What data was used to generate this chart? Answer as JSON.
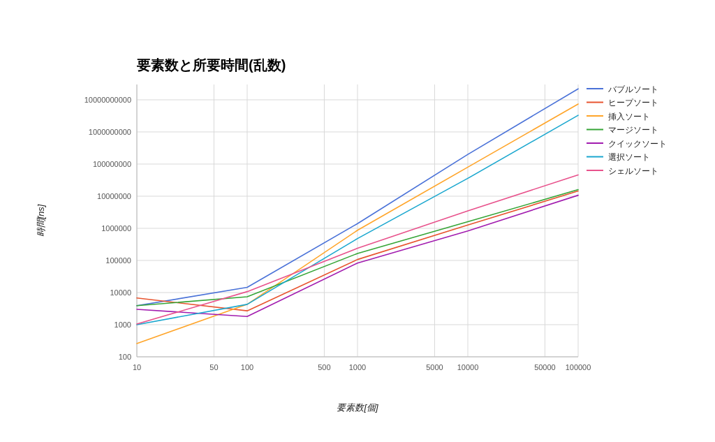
{
  "chart_data": {
    "type": "line",
    "title": "要素数と所要時間(乱数)",
    "xlabel": "要素数[個]",
    "ylabel": "時間[ns]",
    "log": "xy",
    "grid": true,
    "legend": "right",
    "x": [
      10,
      100,
      1000,
      10000,
      100000
    ],
    "xlim": [
      10,
      100000
    ],
    "xticks": [
      10,
      50,
      100,
      500,
      1000,
      5000,
      10000,
      50000,
      100000
    ],
    "ylim": [
      100,
      30000000000
    ],
    "yticks": [
      100,
      1000,
      10000,
      100000,
      1000000,
      10000000,
      100000000,
      1000000000,
      10000000000
    ],
    "series": [
      {
        "name": "バブルソート",
        "color": "#4a72d8",
        "values": [
          3900,
          14500,
          1400000,
          200000000,
          22000000000
        ]
      },
      {
        "name": "ヒープソート",
        "color": "#e8542f",
        "values": [
          6800,
          2700,
          107000,
          1260000,
          14500000
        ]
      },
      {
        "name": "挿入ソート",
        "color": "#ffa52a",
        "values": [
          260,
          4300,
          870000,
          80000000,
          7400000000
        ]
      },
      {
        "name": "マージソート",
        "color": "#36a537",
        "values": [
          3900,
          7400,
          165000,
          1600000,
          16000000
        ]
      },
      {
        "name": "クイックソート",
        "color": "#a21caf",
        "values": [
          3000,
          1800,
          83000,
          830000,
          10700000
        ]
      },
      {
        "name": "選択ソート",
        "color": "#1aa7cf",
        "values": [
          1000,
          4300,
          480000,
          36000000,
          3300000000
        ]
      },
      {
        "name": "シェルソート",
        "color": "#e8528c",
        "values": [
          1050,
          10700,
          240000,
          3500000,
          46000000
        ]
      }
    ]
  }
}
